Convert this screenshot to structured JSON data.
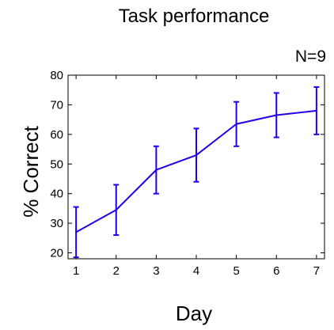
{
  "chart_data": {
    "type": "line",
    "title": "Task performance",
    "annotation": "N=9",
    "xlabel": "Day",
    "ylabel": "% Correct",
    "x": [
      1,
      2,
      3,
      4,
      5,
      6,
      7
    ],
    "xticks": [
      "1",
      "2",
      "3",
      "4",
      "5",
      "6",
      "7"
    ],
    "yticks": [
      "20",
      "30",
      "40",
      "50",
      "60",
      "70",
      "80"
    ],
    "xlim": [
      0.8,
      7.2
    ],
    "ylim": [
      18,
      80
    ],
    "grid": false,
    "series": [
      {
        "values": [
          27,
          34.5,
          48,
          53,
          63.5,
          66.5,
          68
        ],
        "error": [
          8.5,
          8.5,
          8,
          9,
          7.5,
          7.5,
          8
        ],
        "color": "#2200ee"
      }
    ]
  }
}
